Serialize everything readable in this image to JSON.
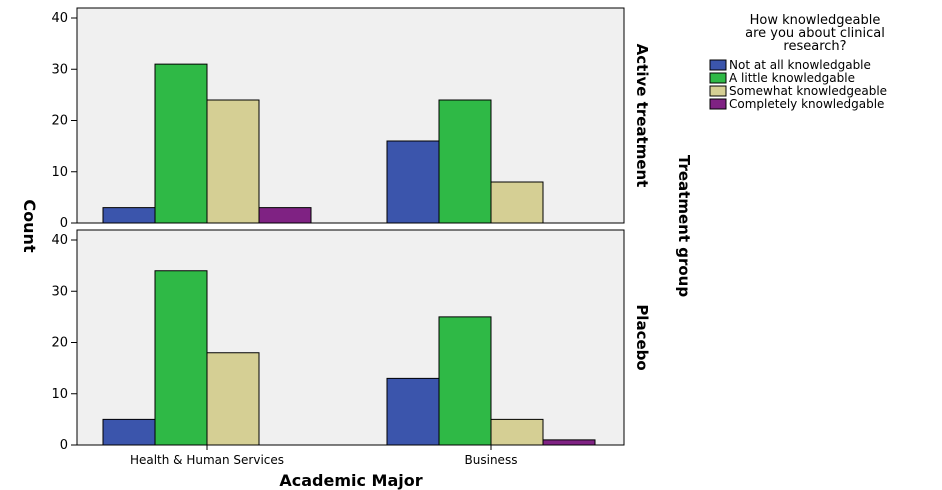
{
  "chart_data": {
    "type": "bar",
    "xlabel": "Academic Major",
    "ylabel": "Count",
    "ylim": [
      0,
      40
    ],
    "yticks": [
      0,
      10,
      20,
      30,
      40
    ],
    "categories": [
      "Health & Human Services",
      "Business"
    ],
    "panel_variable": "Treatment group",
    "legend": {
      "title_lines": [
        "How knowledgeable",
        "are you about clinical",
        "research?"
      ],
      "placement": "right"
    },
    "series": [
      {
        "name": "Not at all knowledgable",
        "color": "#3b55ac"
      },
      {
        "name": "A little knowledgable",
        "color": "#2fb946"
      },
      {
        "name": "Somewhat knowledgeable",
        "color": "#d5cf94"
      },
      {
        "name": "Completely knowledgable",
        "color": "#7f2283"
      }
    ],
    "panels": [
      {
        "label": "Active treatment",
        "values": [
          [
            3,
            16
          ],
          [
            31,
            24
          ],
          [
            24,
            8
          ],
          [
            3,
            0
          ]
        ]
      },
      {
        "label": "Placebo",
        "values": [
          [
            5,
            13
          ],
          [
            34,
            25
          ],
          [
            18,
            5
          ],
          [
            0,
            1
          ]
        ]
      }
    ],
    "grid": false
  }
}
